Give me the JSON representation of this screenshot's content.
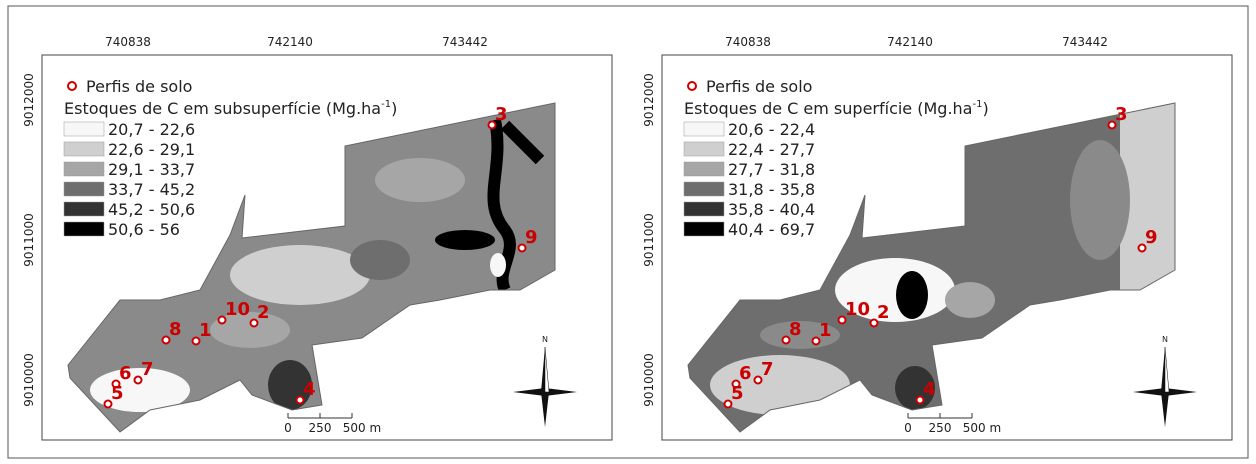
{
  "panels": [
    {
      "x_labels": [
        "740838",
        "742140",
        "743442"
      ],
      "y_labels": [
        "9012000",
        "9011000",
        "9010000"
      ],
      "legend": {
        "points_label": "Perfis de solo",
        "title": "Estoques de C em subsuperfície (Mg.ha",
        "title_sup": "-1",
        "title_end": ")",
        "classes": [
          "20,7 - 22,6",
          "22,6 - 29,1",
          "29,1 - 33,7",
          "33,7 - 45,2",
          "45,2 - 50,6",
          "50,6 - 56"
        ]
      },
      "points": [
        "3",
        "9",
        "10",
        "2",
        "8",
        "1",
        "7",
        "6",
        "5",
        "4"
      ],
      "scale_labels": [
        "0",
        "250",
        "500 m"
      ],
      "north": "N"
    },
    {
      "x_labels": [
        "740838",
        "742140",
        "743442"
      ],
      "y_labels": [
        "9012000",
        "9011000",
        "9010000"
      ],
      "legend": {
        "points_label": "Perfis de solo",
        "title": "Estoques de C em superfície (Mg.ha",
        "title_sup": "-1",
        "title_end": ")",
        "classes": [
          "20,6 - 22,4",
          "22,4 - 27,7",
          "27,7 - 31,8",
          "31,8 - 35,8",
          "35,8 - 40,4",
          "40,4 - 69,7"
        ]
      },
      "points": [
        "3",
        "9",
        "10",
        "2",
        "8",
        "1",
        "7",
        "6",
        "5",
        "4"
      ],
      "scale_labels": [
        "0",
        "250",
        "500 m"
      ],
      "north": "N"
    }
  ]
}
